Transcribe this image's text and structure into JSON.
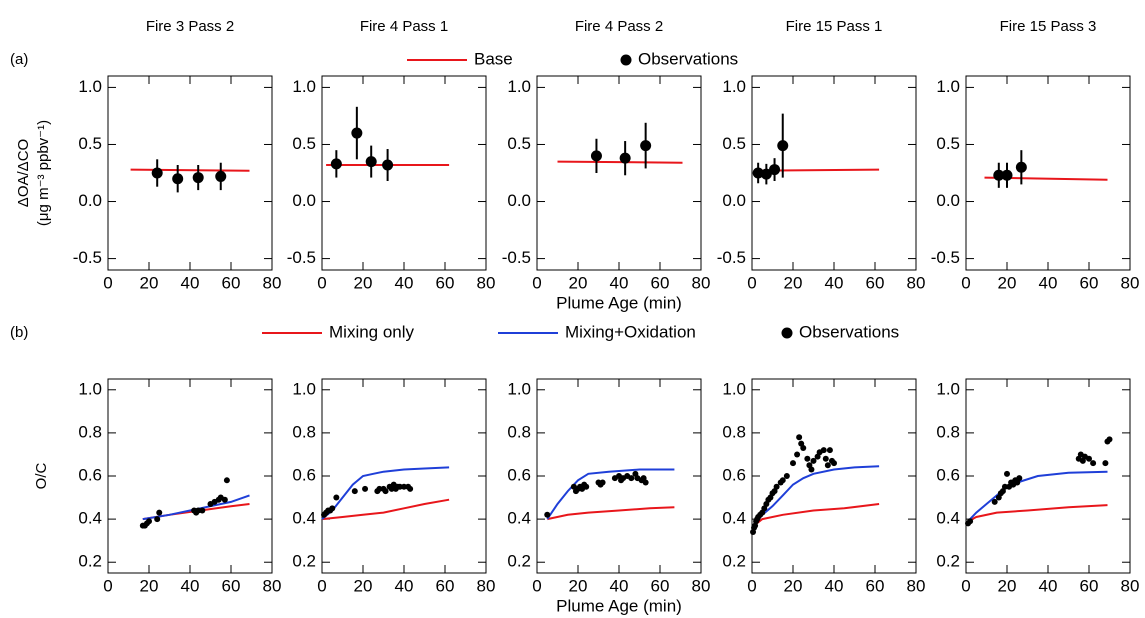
{
  "chart_data": [
    {
      "type": "line",
      "title": "Fire 3 Pass 2",
      "panel_label": "(a)",
      "ylabel": "ΔOA/ΔCO",
      "ylabel_units": "(μg m⁻³ ppbv⁻¹)",
      "xlim": [
        0,
        80
      ],
      "xticks": [
        0,
        20,
        40,
        60,
        80
      ],
      "ylim": [
        -0.6,
        1.1
      ],
      "yticks": [
        -0.5,
        {
          "value": 0,
          "label": "0.0"
        },
        0.5,
        {
          "value": 1,
          "label": "1.0"
        }
      ],
      "series": [
        {
          "name": "Base",
          "color": "#e8161b",
          "style": "line",
          "x": [
            11,
            69
          ],
          "values": [
            0.28,
            0.27
          ]
        },
        {
          "name": "Observations",
          "color": "#000000",
          "style": "points",
          "x": [
            24,
            34,
            44,
            55
          ],
          "values": [
            0.25,
            0.2,
            0.21,
            0.22
          ],
          "errors": [
            0.12,
            0.12,
            0.11,
            0.12
          ]
        }
      ]
    },
    {
      "type": "line",
      "title": "Fire 4 Pass 1",
      "xlim": [
        0,
        80
      ],
      "xticks": [
        0,
        20,
        40,
        60,
        80
      ],
      "ylim": [
        -0.6,
        1.1
      ],
      "yticks": [
        -0.5,
        {
          "value": 0,
          "label": "0.0"
        },
        0.5,
        {
          "value": 1,
          "label": "1.0"
        }
      ],
      "series": [
        {
          "name": "Base",
          "color": "#e8161b",
          "style": "line",
          "x": [
            2,
            62
          ],
          "values": [
            0.32,
            0.32
          ]
        },
        {
          "name": "Observations",
          "color": "#000000",
          "style": "points",
          "x": [
            7,
            17,
            24,
            32
          ],
          "values": [
            0.33,
            0.6,
            0.35,
            0.32
          ],
          "errors": [
            0.12,
            0.23,
            0.14,
            0.14
          ]
        }
      ]
    },
    {
      "type": "line",
      "title": "Fire 4 Pass 2",
      "xlim": [
        0,
        80
      ],
      "xticks": [
        0,
        20,
        40,
        60,
        80
      ],
      "ylim": [
        -0.6,
        1.1
      ],
      "yticks": [
        -0.5,
        {
          "value": 0,
          "label": "0.0"
        },
        0.5,
        {
          "value": 1,
          "label": "1.0"
        }
      ],
      "xlabel": "Plume Age (min)",
      "series": [
        {
          "name": "Base",
          "color": "#e8161b",
          "style": "line",
          "x": [
            10,
            71
          ],
          "values": [
            0.35,
            0.34
          ]
        },
        {
          "name": "Observations",
          "color": "#000000",
          "style": "points",
          "x": [
            29,
            43,
            53
          ],
          "values": [
            0.4,
            0.38,
            0.49
          ],
          "errors": [
            0.15,
            0.15,
            0.2
          ]
        }
      ]
    },
    {
      "type": "line",
      "title": "Fire 15 Pass 1",
      "xlim": [
        0,
        80
      ],
      "xticks": [
        0,
        20,
        40,
        60,
        80
      ],
      "ylim": [
        -0.6,
        1.1
      ],
      "yticks": [
        -0.5,
        {
          "value": 0,
          "label": "0.0"
        },
        0.5,
        {
          "value": 1,
          "label": "1.0"
        }
      ],
      "series": [
        {
          "name": "Base",
          "color": "#e8161b",
          "style": "line",
          "x": [
            2,
            62
          ],
          "values": [
            0.27,
            0.28
          ]
        },
        {
          "name": "Observations",
          "color": "#000000",
          "style": "points",
          "x": [
            3,
            7,
            11,
            15
          ],
          "values": [
            0.25,
            0.24,
            0.28,
            0.49
          ],
          "errors": [
            0.09,
            0.09,
            0.1,
            0.28
          ]
        }
      ]
    },
    {
      "type": "line",
      "title": "Fire 15 Pass 3",
      "xlim": [
        0,
        80
      ],
      "xticks": [
        0,
        20,
        40,
        60,
        80
      ],
      "ylim": [
        -0.6,
        1.1
      ],
      "yticks": [
        -0.5,
        {
          "value": 0,
          "label": "0.0"
        },
        0.5,
        {
          "value": 1,
          "label": "1.0"
        }
      ],
      "series": [
        {
          "name": "Base",
          "color": "#e8161b",
          "style": "line",
          "x": [
            9,
            69
          ],
          "values": [
            0.21,
            0.19
          ]
        },
        {
          "name": "Observations",
          "color": "#000000",
          "style": "points",
          "x": [
            16,
            20,
            27
          ],
          "values": [
            0.23,
            0.23,
            0.3
          ],
          "errors": [
            0.11,
            0.11,
            0.15
          ]
        }
      ]
    },
    {
      "type": "line",
      "panel_label": "(b)",
      "ylabel": "O/C",
      "xlim": [
        0,
        80
      ],
      "xticks": [
        0,
        20,
        40,
        60,
        80
      ],
      "ylim": [
        0.15,
        1.05
      ],
      "yticks": [
        0.2,
        0.4,
        0.6,
        0.8,
        {
          "value": 1,
          "label": "1.0"
        }
      ],
      "series": [
        {
          "name": "Mixing only",
          "color": "#e8161b",
          "style": "line",
          "x": [
            17,
            30,
            45,
            60,
            69
          ],
          "values": [
            0.4,
            0.42,
            0.44,
            0.46,
            0.47
          ]
        },
        {
          "name": "Mixing+Oxidation",
          "color": "#1f3fd8",
          "style": "line",
          "x": [
            17,
            30,
            45,
            60,
            69
          ],
          "values": [
            0.4,
            0.42,
            0.45,
            0.48,
            0.51
          ]
        },
        {
          "name": "Observations",
          "color": "#000000",
          "style": "points",
          "x": [
            17,
            18,
            19,
            20,
            24,
            25,
            42,
            43,
            44,
            46,
            50,
            52,
            54,
            55,
            57,
            58
          ],
          "values": [
            0.37,
            0.37,
            0.38,
            0.39,
            0.4,
            0.43,
            0.44,
            0.43,
            0.44,
            0.44,
            0.47,
            0.48,
            0.49,
            0.5,
            0.49,
            0.58
          ]
        }
      ]
    },
    {
      "type": "line",
      "xlim": [
        0,
        80
      ],
      "xticks": [
        0,
        20,
        40,
        60,
        80
      ],
      "ylim": [
        0.15,
        1.05
      ],
      "yticks": [
        0.2,
        0.4,
        0.6,
        0.8,
        {
          "value": 1,
          "label": "1.0"
        }
      ],
      "series": [
        {
          "name": "Mixing only",
          "color": "#e8161b",
          "style": "line",
          "x": [
            0,
            10,
            20,
            30,
            40,
            50,
            62
          ],
          "values": [
            0.4,
            0.41,
            0.42,
            0.43,
            0.45,
            0.47,
            0.49
          ]
        },
        {
          "name": "Mixing+Oxidation",
          "color": "#1f3fd8",
          "style": "line",
          "x": [
            0,
            5,
            10,
            15,
            20,
            25,
            30,
            40,
            50,
            62
          ],
          "values": [
            0.4,
            0.44,
            0.5,
            0.56,
            0.6,
            0.61,
            0.62,
            0.63,
            0.635,
            0.64
          ]
        },
        {
          "name": "Observations",
          "color": "#000000",
          "style": "points",
          "x": [
            1,
            2,
            3,
            4,
            5,
            7,
            16,
            21,
            27,
            28,
            30,
            31,
            33,
            34,
            35,
            36,
            37,
            38,
            40,
            42,
            43
          ],
          "values": [
            0.42,
            0.43,
            0.44,
            0.44,
            0.45,
            0.5,
            0.53,
            0.54,
            0.53,
            0.54,
            0.54,
            0.53,
            0.55,
            0.54,
            0.56,
            0.54,
            0.55,
            0.55,
            0.55,
            0.55,
            0.54
          ]
        }
      ]
    },
    {
      "type": "line",
      "xlabel": "Plume Age (min)",
      "xlim": [
        0,
        80
      ],
      "xticks": [
        0,
        20,
        40,
        60,
        80
      ],
      "ylim": [
        0.15,
        1.05
      ],
      "yticks": [
        0.2,
        0.4,
        0.6,
        0.8,
        {
          "value": 1,
          "label": "1.0"
        }
      ],
      "series": [
        {
          "name": "Mixing only",
          "color": "#e8161b",
          "style": "line",
          "x": [
            5,
            15,
            25,
            40,
            55,
            67
          ],
          "values": [
            0.4,
            0.42,
            0.43,
            0.44,
            0.45,
            0.455
          ]
        },
        {
          "name": "Mixing+Oxidation",
          "color": "#1f3fd8",
          "style": "line",
          "x": [
            5,
            10,
            15,
            20,
            25,
            35,
            50,
            67
          ],
          "values": [
            0.4,
            0.47,
            0.53,
            0.58,
            0.61,
            0.62,
            0.63,
            0.63
          ]
        },
        {
          "name": "Observations",
          "color": "#000000",
          "style": "points",
          "x": [
            5,
            18,
            19,
            20,
            21,
            22,
            23,
            24,
            30,
            31,
            32,
            38,
            40,
            41,
            42,
            44,
            46,
            48,
            49,
            51,
            52,
            53
          ],
          "values": [
            0.42,
            0.55,
            0.53,
            0.54,
            0.55,
            0.54,
            0.56,
            0.55,
            0.57,
            0.56,
            0.57,
            0.59,
            0.6,
            0.58,
            0.59,
            0.6,
            0.59,
            0.61,
            0.59,
            0.58,
            0.59,
            0.57
          ]
        }
      ]
    },
    {
      "type": "line",
      "xlim": [
        0,
        80
      ],
      "xticks": [
        0,
        20,
        40,
        60,
        80
      ],
      "ylim": [
        0.15,
        1.05
      ],
      "yticks": [
        0.2,
        0.4,
        0.6,
        0.8,
        {
          "value": 1,
          "label": "1.0"
        }
      ],
      "series": [
        {
          "name": "Mixing only",
          "color": "#e8161b",
          "style": "line",
          "x": [
            1,
            5,
            15,
            30,
            45,
            62
          ],
          "values": [
            0.37,
            0.4,
            0.42,
            0.44,
            0.45,
            0.47
          ]
        },
        {
          "name": "Mixing+Oxidation",
          "color": "#1f3fd8",
          "style": "line",
          "x": [
            1,
            5,
            10,
            15,
            20,
            25,
            30,
            40,
            50,
            62
          ],
          "values": [
            0.37,
            0.42,
            0.46,
            0.51,
            0.56,
            0.59,
            0.61,
            0.63,
            0.64,
            0.645
          ]
        },
        {
          "name": "Observations",
          "color": "#000000",
          "style": "points",
          "x": [
            0.5,
            1,
            1.5,
            2,
            2.5,
            3,
            4,
            5,
            6,
            7,
            8,
            9,
            10,
            11,
            12,
            14,
            15,
            17,
            20,
            22,
            23,
            24,
            25,
            27,
            28,
            29,
            30,
            32,
            33,
            35,
            36,
            37,
            38,
            39,
            40
          ],
          "values": [
            0.34,
            0.36,
            0.37,
            0.39,
            0.4,
            0.41,
            0.42,
            0.43,
            0.45,
            0.47,
            0.49,
            0.5,
            0.52,
            0.53,
            0.55,
            0.57,
            0.58,
            0.6,
            0.66,
            0.7,
            0.78,
            0.75,
            0.73,
            0.68,
            0.65,
            0.63,
            0.67,
            0.69,
            0.71,
            0.72,
            0.68,
            0.65,
            0.72,
            0.67,
            0.66
          ]
        }
      ]
    },
    {
      "type": "line",
      "xlim": [
        0,
        80
      ],
      "xticks": [
        0,
        20,
        40,
        60,
        80
      ],
      "ylim": [
        0.15,
        1.05
      ],
      "yticks": [
        0.2,
        0.4,
        0.6,
        0.8,
        {
          "value": 1,
          "label": "1.0"
        }
      ],
      "series": [
        {
          "name": "Mixing only",
          "color": "#e8161b",
          "style": "line",
          "x": [
            1,
            5,
            15,
            30,
            50,
            69
          ],
          "values": [
            0.39,
            0.41,
            0.43,
            0.44,
            0.455,
            0.465
          ]
        },
        {
          "name": "Mixing+Oxidation",
          "color": "#1f3fd8",
          "style": "line",
          "x": [
            1,
            5,
            10,
            15,
            20,
            25,
            35,
            50,
            69
          ],
          "values": [
            0.39,
            0.43,
            0.47,
            0.51,
            0.55,
            0.57,
            0.6,
            0.615,
            0.62
          ]
        },
        {
          "name": "Observations",
          "color": "#000000",
          "style": "points",
          "x": [
            1,
            2,
            14,
            16,
            17,
            18,
            19,
            20,
            21,
            22,
            23,
            24,
            25,
            26,
            55,
            56,
            57,
            58,
            60,
            62,
            68,
            69,
            70
          ],
          "values": [
            0.38,
            0.39,
            0.48,
            0.5,
            0.52,
            0.53,
            0.55,
            0.61,
            0.55,
            0.57,
            0.56,
            0.58,
            0.57,
            0.59,
            0.68,
            0.7,
            0.67,
            0.69,
            0.68,
            0.66,
            0.66,
            0.76,
            0.77
          ]
        }
      ]
    }
  ]
}
